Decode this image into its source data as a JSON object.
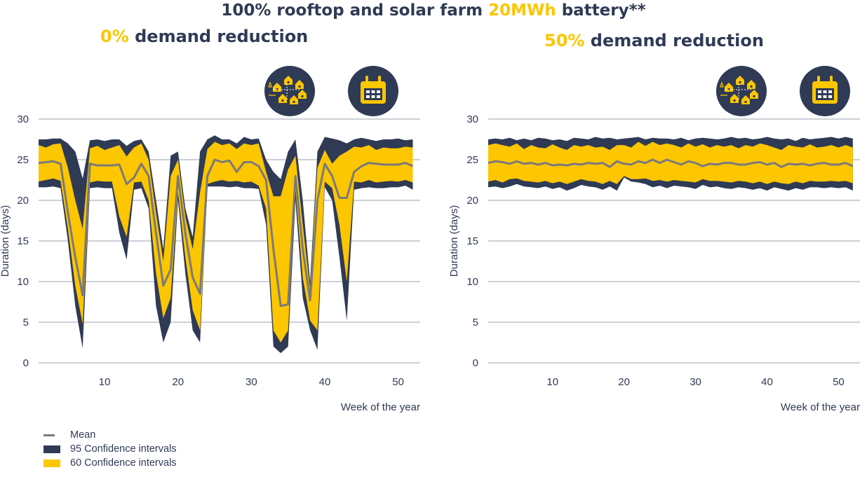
{
  "title": {
    "prefix": "100% rooftop and solar farm ",
    "highlight": "20MWh",
    "suffix": " battery**"
  },
  "colors": {
    "ci95": "#2f3a55",
    "ci60": "#fcc600",
    "mean": "#7a7a7a",
    "grid": "#9aa0ac",
    "text": "#2f3a55",
    "icon_bg": "#2f3a55",
    "icon_fg": "#fcc600"
  },
  "icons": [
    "house-network-icon",
    "calendar-icon"
  ],
  "chart_data": [
    {
      "type": "area",
      "subtitle_pct": "0%",
      "subtitle_text": " demand reduction",
      "ylabel": "Duration (days)",
      "xlabel": "Week of the year",
      "xlim": [
        1,
        53
      ],
      "ylim": [
        0,
        30
      ],
      "yticks": [
        0,
        5,
        10,
        15,
        20,
        25,
        30
      ],
      "xticks": [
        10,
        20,
        30,
        40,
        50
      ],
      "grid": "horizontal",
      "x": [
        1,
        2,
        3,
        4,
        5,
        6,
        7,
        8,
        9,
        10,
        11,
        12,
        13,
        14,
        15,
        16,
        17,
        18,
        19,
        20,
        21,
        22,
        23,
        24,
        25,
        26,
        27,
        28,
        29,
        30,
        31,
        32,
        33,
        34,
        35,
        36,
        37,
        38,
        39,
        40,
        41,
        42,
        43,
        44,
        45,
        46,
        47,
        48,
        49,
        50,
        51,
        52
      ],
      "mean": [
        24.6,
        24.7,
        24.8,
        24.5,
        18.5,
        13.0,
        8.3,
        24.5,
        24.3,
        24.3,
        24.3,
        24.4,
        22.0,
        22.8,
        24.5,
        23.0,
        16.0,
        9.5,
        11.5,
        23.0,
        16.0,
        10.5,
        8.5,
        23.0,
        25.0,
        24.7,
        24.9,
        23.5,
        24.7,
        24.7,
        24.2,
        22.5,
        14.0,
        7.0,
        7.2,
        23.0,
        14.0,
        7.7,
        20.0,
        24.5,
        23.0,
        20.3,
        20.3,
        23.5,
        24.2,
        24.6,
        24.5,
        24.4,
        24.4,
        24.4,
        24.6,
        24.2
      ],
      "ci95_low": [
        21.6,
        21.6,
        21.7,
        21.5,
        15.0,
        7.0,
        1.8,
        21.5,
        21.6,
        21.5,
        21.5,
        16.0,
        12.7,
        21.3,
        21.5,
        19.0,
        7.0,
        2.5,
        5.0,
        20.0,
        11.0,
        4.0,
        2.5,
        21.7,
        21.7,
        21.7,
        21.6,
        21.7,
        21.5,
        21.5,
        21.4,
        17.0,
        2.0,
        1.2,
        2.0,
        20.0,
        8.0,
        4.0,
        1.6,
        21.6,
        20.0,
        13.0,
        5.2,
        21.3,
        21.5,
        21.6,
        21.5,
        21.5,
        21.6,
        21.6,
        21.8,
        21.3
      ],
      "ci95_high": [
        27.5,
        27.5,
        27.6,
        27.6,
        27.0,
        26.0,
        22.7,
        27.4,
        27.5,
        27.3,
        27.5,
        27.5,
        26.7,
        27.3,
        27.5,
        26.0,
        20.0,
        14.0,
        25.5,
        26.0,
        19.0,
        15.5,
        26.0,
        27.5,
        28.0,
        27.5,
        27.5,
        27.0,
        27.8,
        27.5,
        27.6,
        25.0,
        23.5,
        22.6,
        26.0,
        27.5,
        20.0,
        10.0,
        26.0,
        27.8,
        27.6,
        27.4,
        27.0,
        27.5,
        27.7,
        27.5,
        27.3,
        27.5,
        27.5,
        27.6,
        27.4,
        27.5
      ],
      "ci60_low": [
        22.3,
        22.5,
        22.7,
        22.4,
        16.5,
        9.5,
        4.8,
        22.2,
        22.4,
        22.3,
        22.3,
        18.0,
        15.5,
        22.2,
        22.3,
        20.0,
        11.0,
        5.5,
        8.0,
        21.0,
        13.0,
        6.5,
        4.0,
        22.0,
        22.3,
        22.5,
        22.3,
        22.4,
        22.2,
        22.3,
        21.8,
        19.0,
        4.0,
        2.5,
        4.0,
        21.5,
        10.5,
        5.2,
        4.0,
        22.3,
        21.5,
        17.0,
        10.0,
        22.3,
        22.2,
        22.5,
        22.2,
        22.3,
        22.4,
        22.3,
        22.5,
        22.2
      ],
      "ci60_high": [
        26.8,
        26.5,
        26.9,
        27.0,
        24.0,
        20.0,
        16.5,
        26.4,
        26.7,
        26.2,
        26.5,
        26.8,
        25.4,
        26.5,
        27.0,
        25.0,
        18.5,
        12.5,
        23.0,
        25.0,
        18.0,
        14.0,
        21.0,
        26.3,
        27.2,
        26.8,
        27.0,
        26.3,
        27.0,
        26.8,
        27.0,
        23.5,
        20.5,
        20.5,
        23.8,
        25.5,
        17.0,
        9.0,
        24.0,
        26.2,
        24.5,
        25.5,
        26.0,
        26.6,
        26.5,
        26.8,
        26.2,
        26.5,
        26.4,
        26.4,
        26.6,
        26.5
      ]
    },
    {
      "type": "area",
      "subtitle_pct": "50%",
      "subtitle_text": " demand reduction",
      "ylabel": "Duration (days)",
      "xlabel": "Week of the year",
      "xlim": [
        1,
        53
      ],
      "ylim": [
        0,
        30
      ],
      "yticks": [
        0,
        5,
        10,
        15,
        20,
        25,
        30
      ],
      "xticks": [
        10,
        20,
        30,
        40,
        50
      ],
      "grid": "horizontal",
      "x": [
        1,
        2,
        3,
        4,
        5,
        6,
        7,
        8,
        9,
        10,
        11,
        12,
        13,
        14,
        15,
        16,
        17,
        18,
        19,
        20,
        21,
        22,
        23,
        24,
        25,
        26,
        27,
        28,
        29,
        30,
        31,
        32,
        33,
        34,
        35,
        36,
        37,
        38,
        39,
        40,
        41,
        42,
        43,
        44,
        45,
        46,
        47,
        48,
        49,
        50,
        51,
        52
      ],
      "mean": [
        24.6,
        24.8,
        24.7,
        24.5,
        24.8,
        24.5,
        24.6,
        24.4,
        24.6,
        24.3,
        24.4,
        24.3,
        24.5,
        24.4,
        24.6,
        24.5,
        24.6,
        24.1,
        24.8,
        24.5,
        24.4,
        24.8,
        24.6,
        25.0,
        24.6,
        25.0,
        24.7,
        24.4,
        24.8,
        24.6,
        24.2,
        24.5,
        24.4,
        24.6,
        24.6,
        24.4,
        24.4,
        24.6,
        24.7,
        24.4,
        24.6,
        24.1,
        24.5,
        24.4,
        24.5,
        24.3,
        24.5,
        24.6,
        24.4,
        24.4,
        24.6,
        24.2
      ],
      "ci95_low": [
        21.6,
        21.7,
        21.5,
        21.7,
        22.0,
        21.7,
        21.6,
        21.5,
        21.7,
        21.4,
        21.6,
        21.2,
        21.5,
        21.9,
        21.7,
        21.6,
        21.3,
        21.7,
        21.2,
        22.8,
        22.3,
        22.2,
        22.0,
        21.6,
        21.8,
        21.5,
        21.8,
        21.7,
        21.6,
        21.4,
        21.9,
        21.6,
        21.7,
        21.5,
        21.4,
        21.6,
        21.5,
        21.3,
        21.5,
        21.2,
        21.6,
        21.4,
        21.2,
        21.5,
        21.3,
        21.6,
        21.6,
        21.5,
        21.6,
        21.5,
        21.6,
        21.2
      ],
      "ci95_high": [
        27.5,
        27.6,
        27.5,
        27.7,
        27.4,
        27.6,
        27.4,
        27.7,
        27.6,
        27.4,
        27.5,
        27.3,
        27.7,
        27.6,
        27.5,
        27.8,
        27.6,
        27.7,
        27.5,
        27.6,
        27.7,
        27.8,
        27.5,
        27.7,
        27.6,
        27.6,
        27.5,
        27.7,
        27.4,
        27.6,
        27.7,
        27.6,
        27.5,
        27.6,
        27.8,
        27.6,
        27.7,
        27.5,
        27.6,
        27.8,
        27.6,
        27.5,
        27.6,
        27.3,
        27.7,
        27.5,
        27.6,
        27.7,
        27.8,
        27.6,
        27.8,
        27.6
      ],
      "ci60_low": [
        22.3,
        22.5,
        22.2,
        22.6,
        22.7,
        22.4,
        22.3,
        22.2,
        22.4,
        22.1,
        22.3,
        22.0,
        22.3,
        22.6,
        22.4,
        22.3,
        22.0,
        22.4,
        22.0,
        23.0,
        22.6,
        22.6,
        22.7,
        22.4,
        22.5,
        22.3,
        22.5,
        22.4,
        22.3,
        22.2,
        22.6,
        22.4,
        22.4,
        22.3,
        22.2,
        22.4,
        22.3,
        22.1,
        22.3,
        22.0,
        22.3,
        22.1,
        22.0,
        22.3,
        22.1,
        22.4,
        22.3,
        22.3,
        22.4,
        22.3,
        22.4,
        22.1
      ],
      "ci60_high": [
        26.8,
        27.0,
        26.8,
        26.6,
        27.0,
        26.3,
        26.8,
        26.5,
        26.4,
        26.9,
        26.5,
        26.2,
        26.8,
        26.6,
        26.8,
        26.5,
        26.6,
        26.2,
        26.8,
        26.8,
        26.5,
        27.2,
        26.7,
        27.2,
        26.8,
        27.0,
        26.8,
        26.5,
        27.0,
        26.6,
        26.9,
        26.5,
        26.8,
        26.6,
        26.8,
        26.4,
        26.8,
        26.6,
        27.0,
        26.8,
        26.5,
        26.2,
        26.8,
        26.6,
        26.5,
        26.9,
        26.5,
        26.6,
        26.8,
        26.5,
        26.8,
        26.5
      ]
    }
  ],
  "legend": [
    {
      "label": "Mean",
      "kind": "line"
    },
    {
      "label": "95 Confidence intervals",
      "kind": "ci95"
    },
    {
      "label": "60 Confidence intervals",
      "kind": "ci60"
    }
  ]
}
